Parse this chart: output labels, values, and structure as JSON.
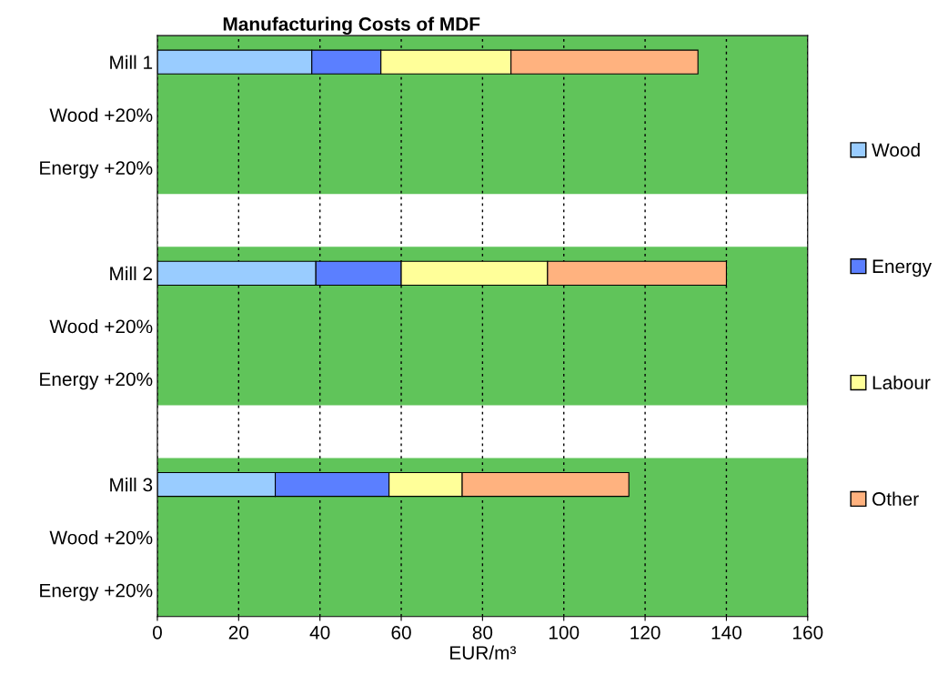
{
  "chart_data": {
    "type": "bar",
    "orientation": "horizontal",
    "stacked": true,
    "title": "Manufacturing Costs of MDF",
    "xlabel": "EUR/m³",
    "categories": [
      "Mill 1",
      "Wood +20%",
      "Energy +20%",
      null,
      "Mill 2",
      "Wood +20%",
      "Energy +20%",
      null,
      "Mill 3",
      "Wood +20%",
      "Energy +20%"
    ],
    "series": [
      {
        "name": "Wood",
        "color": "#99ccff",
        "values": [
          38,
          null,
          null,
          null,
          39,
          null,
          null,
          null,
          29,
          null,
          null
        ]
      },
      {
        "name": "Energy",
        "color": "#5b7fff",
        "values": [
          17,
          null,
          null,
          null,
          21,
          null,
          null,
          null,
          28,
          null,
          null
        ]
      },
      {
        "name": "Labour",
        "color": "#ffff99",
        "values": [
          32,
          null,
          null,
          null,
          36,
          null,
          null,
          null,
          18,
          null,
          null
        ]
      },
      {
        "name": "Other",
        "color": "#ffb27f",
        "values": [
          46,
          null,
          null,
          null,
          44,
          null,
          null,
          null,
          41,
          null,
          null
        ]
      }
    ],
    "xlim": [
      0,
      160
    ],
    "xticks": [
      0,
      20,
      40,
      60,
      80,
      100,
      120,
      140,
      160
    ],
    "grid": "x",
    "legend": "right"
  }
}
